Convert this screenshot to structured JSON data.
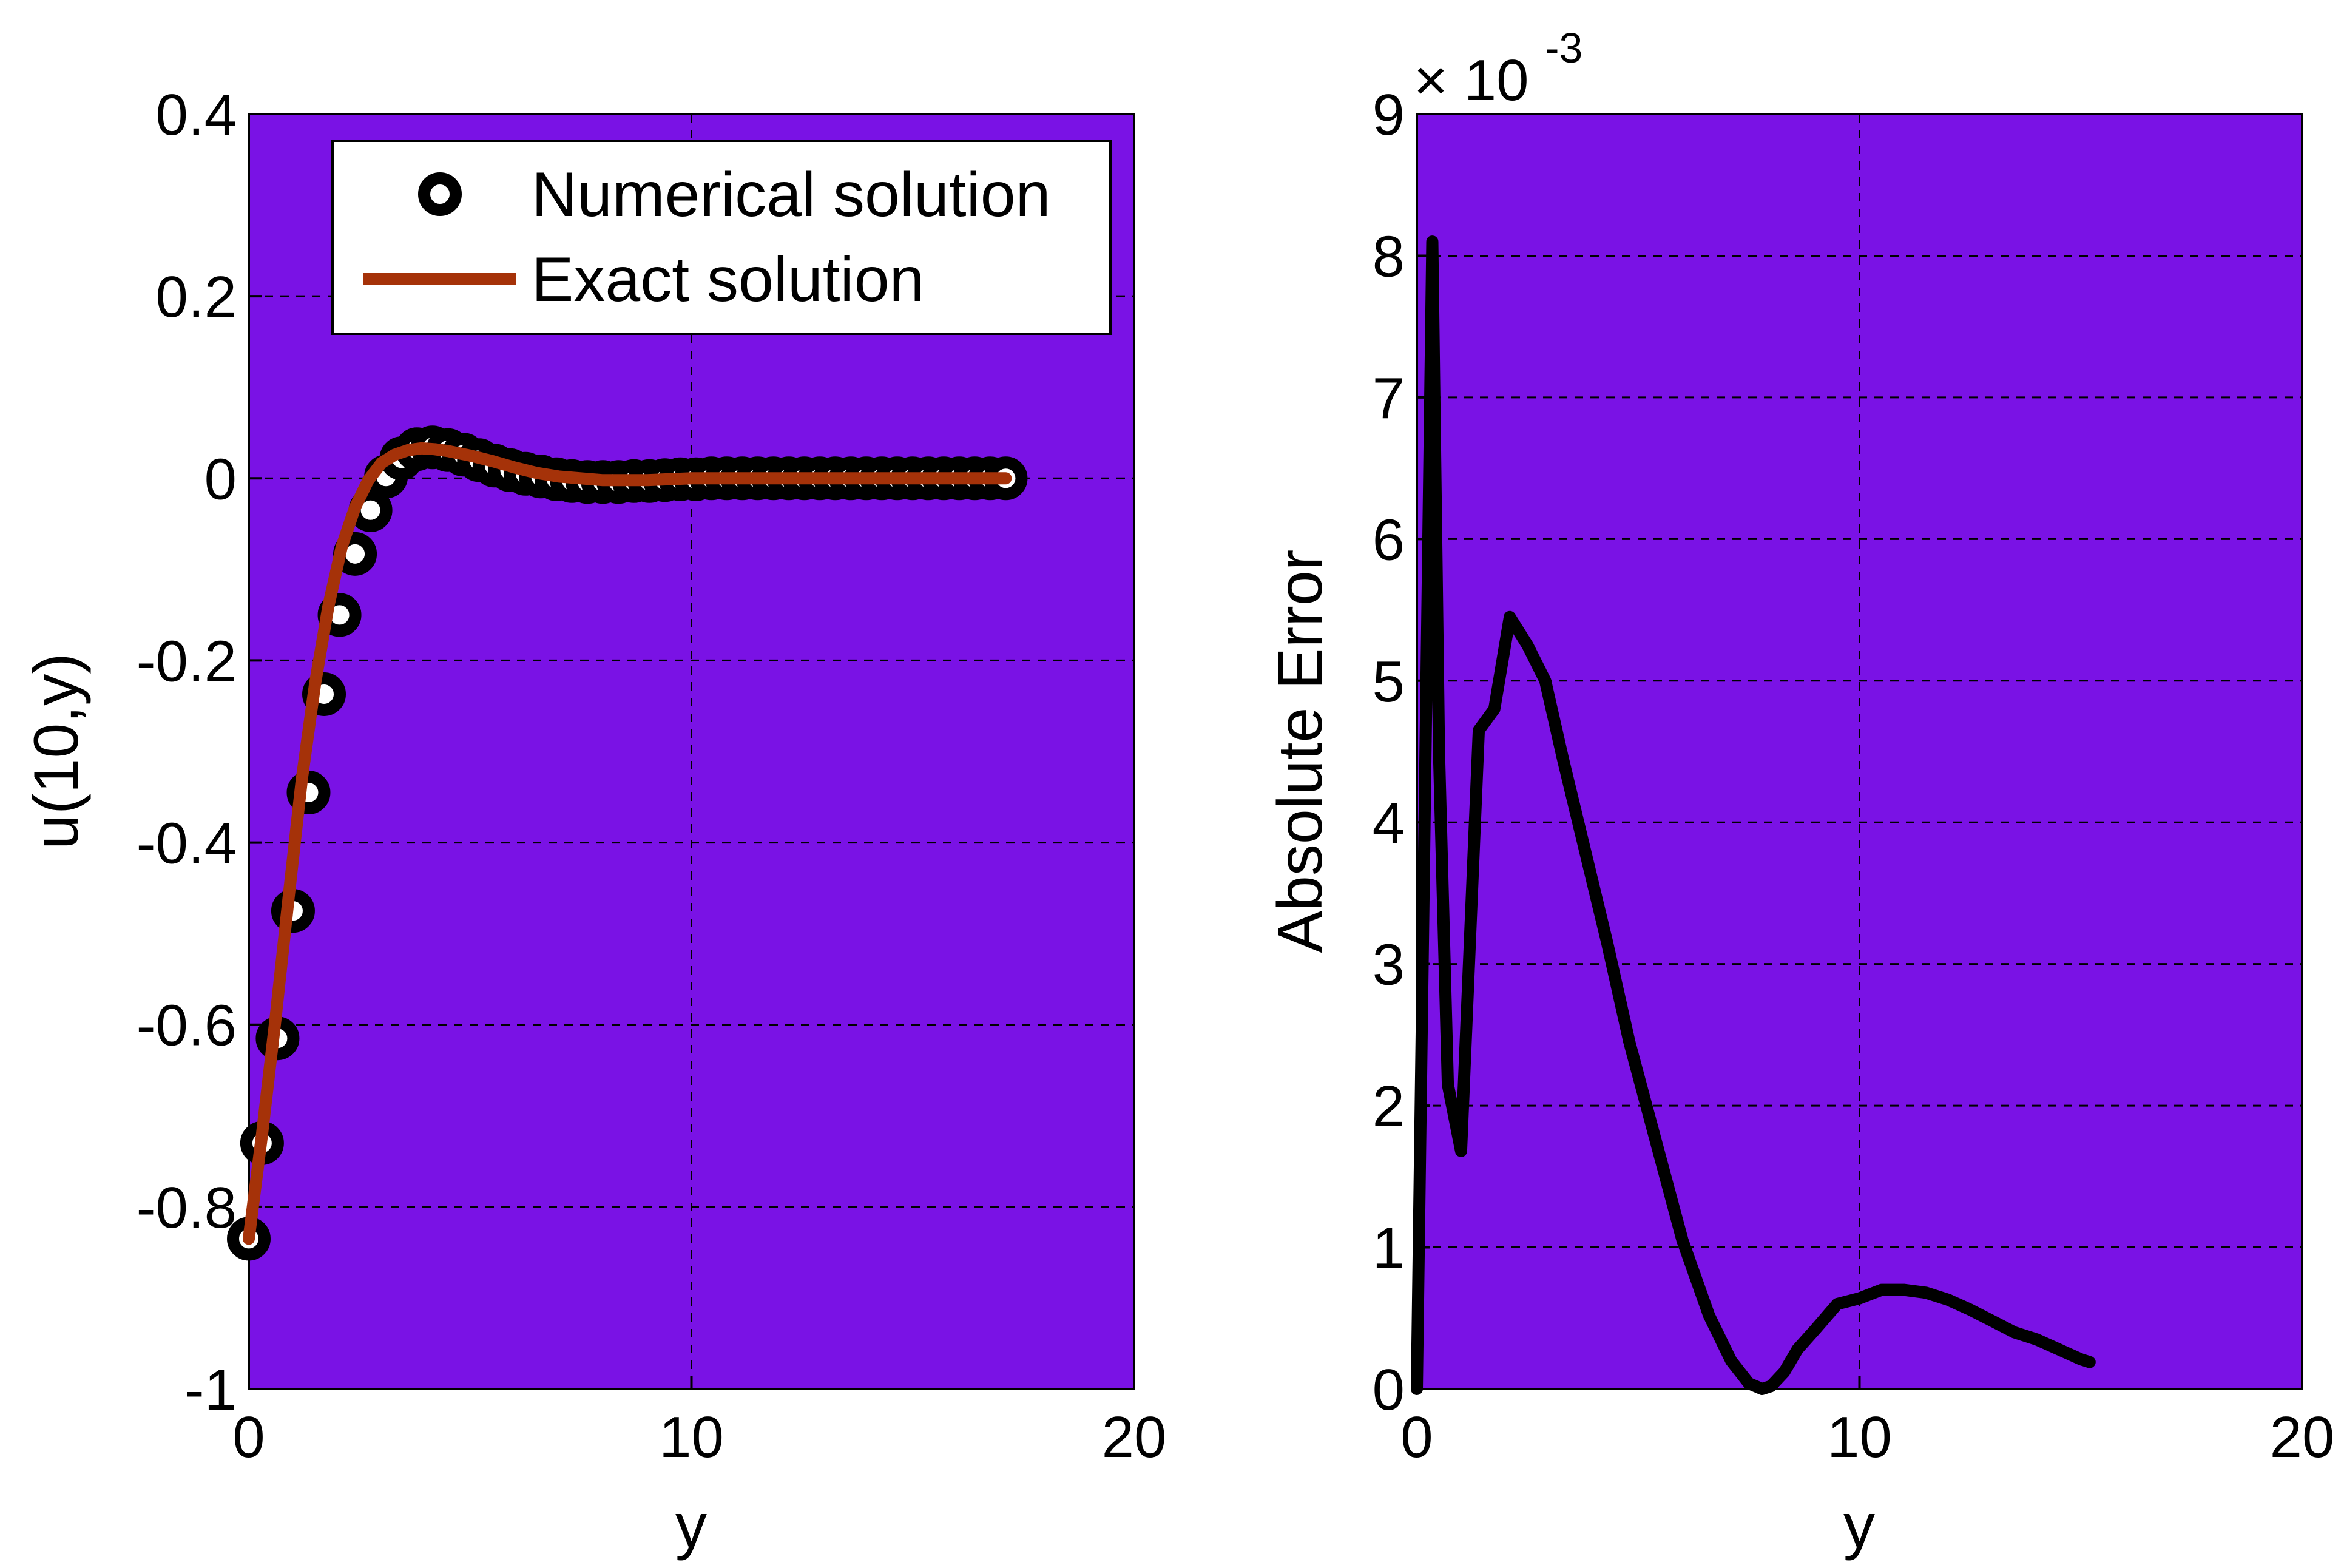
{
  "colors": {
    "plot_background": "#7a12e5",
    "numerical_marker": "#000000",
    "exact_line": "#a53209",
    "error_line": "#000000",
    "grid": "#000000"
  },
  "chart_data": [
    {
      "type": "line",
      "xlabel": "y",
      "ylabel": "u(10,y)",
      "xlim": [
        0,
        20
      ],
      "ylim": [
        -1,
        0.4
      ],
      "xticks": [
        "0",
        "10",
        "20"
      ],
      "yticks": [
        "0.4",
        "0.2",
        "0",
        "-0.2",
        "-0.4",
        "-0.6",
        "-0.8",
        "-1"
      ],
      "grid": true,
      "legend_position": "top-right",
      "series": [
        {
          "name": "Numerical solution",
          "style": "markers",
          "x": [
            0,
            0.3,
            0.65,
            1.0,
            1.35,
            1.7,
            2.05,
            2.4,
            2.75,
            3.1,
            3.45,
            3.8,
            4.15,
            4.5,
            4.85,
            5.2,
            5.55,
            5.9,
            6.25,
            6.6,
            6.95,
            7.3,
            7.65,
            8.0,
            8.35,
            8.7,
            9.05,
            9.4,
            9.75,
            10.1,
            10.45,
            10.8,
            11.15,
            11.5,
            11.85,
            12.2,
            12.55,
            12.9,
            13.25,
            13.6,
            13.95,
            14.3,
            14.65,
            15.0,
            15.35,
            15.7,
            16.05,
            16.4,
            16.75,
            17.1
          ],
          "y": [
            -0.835,
            -0.73,
            -0.615,
            -0.475,
            -0.345,
            -0.237,
            -0.15,
            -0.083,
            -0.035,
            0.002,
            0.022,
            0.032,
            0.034,
            0.031,
            0.026,
            0.02,
            0.014,
            0.009,
            0.005,
            0.002,
            -0.001,
            -0.003,
            -0.004,
            -0.004,
            -0.004,
            -0.003,
            -0.003,
            -0.002,
            -0.001,
            -0.001,
            0.0,
            0.0,
            0.0,
            0.0,
            0.0,
            0.0,
            0.0,
            0.0,
            0.0,
            0.0,
            0.0,
            0.0,
            0.0,
            0.0,
            0.0,
            0.0,
            0.0,
            0.0,
            0.0,
            0.0
          ]
        },
        {
          "name": "Exact solution",
          "style": "line",
          "x": [
            0,
            0.3,
            0.6,
            0.9,
            1.2,
            1.5,
            1.8,
            2.1,
            2.4,
            2.7,
            3.0,
            3.3,
            3.6,
            3.9,
            4.2,
            4.5,
            5.0,
            5.5,
            6.0,
            6.5,
            7.0,
            7.5,
            8.0,
            8.5,
            9.0,
            9.5,
            10.0,
            11.0,
            12.0,
            13.0,
            14.0,
            15.0,
            16.0,
            17.1
          ],
          "y": [
            -0.835,
            -0.72,
            -0.595,
            -0.46,
            -0.33,
            -0.225,
            -0.14,
            -0.075,
            -0.032,
            -0.002,
            0.017,
            0.026,
            0.031,
            0.033,
            0.032,
            0.03,
            0.025,
            0.019,
            0.012,
            0.006,
            0.002,
            0.0,
            -0.002,
            -0.002,
            -0.002,
            -0.001,
            0.0,
            0.0,
            0.0,
            0.0,
            0.0,
            0.0,
            0.0,
            0.0
          ]
        }
      ]
    },
    {
      "type": "line",
      "xlabel": "y",
      "ylabel": "Absolute Error",
      "xlim": [
        0,
        20
      ],
      "ylim": [
        0,
        9
      ],
      "xticks": [
        "0",
        "10",
        "20"
      ],
      "yticks": [
        "9",
        "8",
        "7",
        "6",
        "5",
        "4",
        "3",
        "2",
        "1",
        "0"
      ],
      "scale_factor_label": "× 10",
      "scale_factor_exponent": "-3",
      "grid": true,
      "series": [
        {
          "style": "line",
          "x": [
            0,
            0.2,
            0.35,
            0.5,
            0.7,
            1.0,
            1.4,
            1.75,
            2.1,
            2.5,
            2.9,
            3.3,
            3.8,
            4.3,
            4.8,
            5.4,
            6.0,
            6.6,
            7.1,
            7.5,
            7.8,
            8.0,
            8.3,
            8.6,
            9.0,
            9.5,
            10.0,
            10.5,
            11.0,
            11.5,
            12.0,
            12.5,
            13.0,
            13.5,
            14.0,
            14.5,
            15.0,
            15.2
          ],
          "y": [
            0.0,
            4.6,
            8.1,
            4.5,
            2.15,
            1.68,
            4.65,
            4.8,
            5.45,
            5.25,
            5.0,
            4.45,
            3.8,
            3.15,
            2.45,
            1.75,
            1.05,
            0.52,
            0.2,
            0.04,
            0.0,
            0.02,
            0.12,
            0.28,
            0.42,
            0.6,
            0.64,
            0.7,
            0.7,
            0.68,
            0.63,
            0.56,
            0.48,
            0.4,
            0.35,
            0.28,
            0.21,
            0.19
          ]
        }
      ]
    }
  ]
}
